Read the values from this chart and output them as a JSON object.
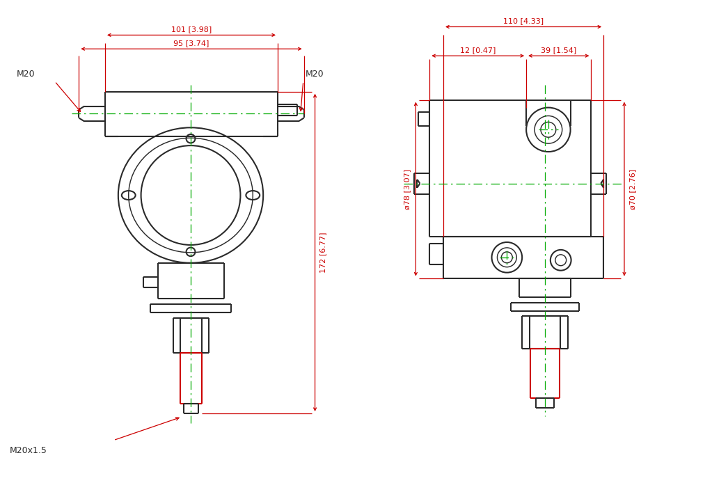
{
  "bg_color": "#ffffff",
  "line_color": "#2a2a2a",
  "red_color": "#cc0000",
  "green_color": "#00aa00",
  "fig_width": 10.46,
  "fig_height": 6.94,
  "left_labels": {
    "dim_101": "101 [3.98]",
    "dim_95": "95 [3.74]",
    "dim_172": "172 [6.77]",
    "m20_left": "M20",
    "m20_right": "M20",
    "m20x15": "M20x1.5"
  },
  "right_labels": {
    "dim_110": "110 [4.33]",
    "dim_12": "12 [0.47]",
    "dim_39": "39 [1.54]",
    "dim_78": "ø78 [3.07]",
    "dim_70": "ø70 [2.76]"
  }
}
